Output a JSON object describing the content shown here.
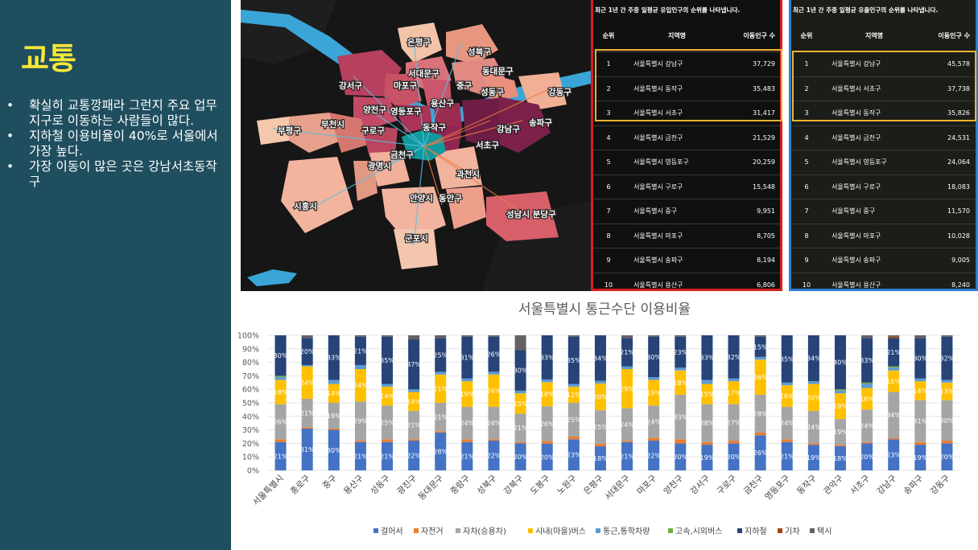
{
  "left_panel": {
    "title": "교통",
    "bullets": [
      "확실히 교통깡패라 그런지 주요 업무지구로 이동하는 사람들이 많다.",
      "지하철 이용비율이 40%로 서울에서 가장 높다.",
      "가장 이동이 많은 곳은 강남서초동작구"
    ],
    "bullet_symbol": "•"
  },
  "map": {
    "labels": [
      "은평구",
      "성북구",
      "서대문구",
      "동대문구",
      "강서구",
      "마포구",
      "중구",
      "성동구",
      "강동구",
      "양천구",
      "영등포구",
      "용산구",
      "부평구",
      "부천시",
      "구로구",
      "동작구",
      "강남구",
      "송파구",
      "서초구",
      "광명시",
      "금천구",
      "과천시",
      "시흥시",
      "안양시",
      "동안구",
      "성남시 분당구",
      "군포시"
    ]
  },
  "table_inflow": {
    "heading": "최근 1년 간 주중 일평균 유입인구의 순위를 나타냅니다.",
    "columns": [
      "순위",
      "지역명",
      "이동인구 수"
    ],
    "rows": [
      [
        "1",
        "서울특별시 강남구",
        "37,729"
      ],
      [
        "2",
        "서울특별시 동작구",
        "35,483"
      ],
      [
        "3",
        "서울특별시 서초구",
        "31,417"
      ],
      [
        "4",
        "서울특별시 금천구",
        "21,529"
      ],
      [
        "5",
        "서울특별시 영등포구",
        "20,259"
      ],
      [
        "6",
        "서울특별시 구로구",
        "15,548"
      ],
      [
        "7",
        "서울특별시 중구",
        "9,951"
      ],
      [
        "8",
        "서울특별시 마포구",
        "8,705"
      ],
      [
        "9",
        "서울특별시 송파구",
        "8,194"
      ],
      [
        "10",
        "서울특별시 용산구",
        "6,806"
      ]
    ]
  },
  "table_outflow": {
    "heading": "최근 1년 간 주중 일평균 유출인구의 순위를 나타냅니다.",
    "columns": [
      "순위",
      "지역명",
      "이동인구 수"
    ],
    "rows": [
      [
        "1",
        "서울특별시 강남구",
        "45,578"
      ],
      [
        "2",
        "서울특별시 서초구",
        "37,738"
      ],
      [
        "3",
        "서울특별시 동작구",
        "35,826"
      ],
      [
        "4",
        "서울특별시 금천구",
        "24,531"
      ],
      [
        "5",
        "서울특별시 영등포구",
        "24,064"
      ],
      [
        "6",
        "서울특별시 구로구",
        "18,083"
      ],
      [
        "7",
        "서울특별시 중구",
        "11,570"
      ],
      [
        "8",
        "서울특별시 마포구",
        "10,028"
      ],
      [
        "9",
        "서울특별시 송파구",
        "9,005"
      ],
      [
        "10",
        "서울특별시 용산구",
        "8,240"
      ]
    ]
  },
  "chart_data": {
    "type": "bar",
    "stacked": true,
    "title": "서울특별시 통근수단 이용비율",
    "ylim": [
      0,
      100
    ],
    "yticks": [
      "0%",
      "10%",
      "20%",
      "30%",
      "40%",
      "50%",
      "60%",
      "70%",
      "80%",
      "90%",
      "100%"
    ],
    "legend_position": "bottom",
    "categories": [
      "서울특별시",
      "종로구",
      "중구",
      "용산구",
      "성동구",
      "광진구",
      "동대문구",
      "중랑구",
      "성북구",
      "강북구",
      "도봉구",
      "노원구",
      "은평구",
      "서대문구",
      "마포구",
      "양천구",
      "강서구",
      "구로구",
      "금천구",
      "영등포구",
      "동작구",
      "관악구",
      "서초구",
      "강남구",
      "송파구",
      "강동구"
    ],
    "series": [
      {
        "name": "걸어서",
        "color": "#4472c4",
        "values": [
          21,
          31,
          30,
          21,
          21,
          22,
          28,
          21,
          22,
          20,
          20,
          23,
          18,
          21,
          22,
          20,
          19,
          20,
          26,
          21,
          19,
          18,
          20,
          23,
          19,
          20
        ]
      },
      {
        "name": "자전거",
        "color": "#ed7d31",
        "values": [
          2,
          1,
          1,
          1,
          2,
          1,
          1,
          2,
          1,
          1,
          2,
          2,
          2,
          1,
          2,
          3,
          2,
          2,
          2,
          2,
          1,
          1,
          1,
          1,
          2,
          2
        ]
      },
      {
        "name": "자차(승용차)",
        "color": "#a5a5a5",
        "values": [
          26,
          21,
          19,
          29,
          25,
          21,
          21,
          24,
          24,
          21,
          26,
          25,
          25,
          24,
          24,
          33,
          28,
          27,
          28,
          24,
          24,
          19,
          24,
          34,
          31,
          30
        ]
      },
      {
        "name": "시내(마을)버스",
        "color": "#ffc000",
        "values": [
          18,
          24,
          14,
          24,
          14,
          14,
          21,
          19,
          24,
          15,
          18,
          12,
          20,
          29,
          19,
          18,
          15,
          17,
          26,
          16,
          20,
          19,
          16,
          16,
          14,
          13
        ]
      },
      {
        "name": "통근,통학차량",
        "color": "#5b9bd5",
        "values": [
          2,
          1,
          3,
          3,
          2,
          2,
          2,
          2,
          2,
          2,
          2,
          2,
          2,
          2,
          2,
          2,
          3,
          2,
          2,
          2,
          2,
          2,
          3,
          2,
          2,
          2
        ]
      },
      {
        "name": "고속,시외버스",
        "color": "#70ad47",
        "values": [
          1,
          0,
          0,
          0,
          0,
          0,
          0,
          0,
          0,
          0,
          0,
          0,
          0,
          0,
          0,
          0,
          0,
          0,
          0,
          0,
          0,
          1,
          1,
          1,
          0,
          0
        ]
      },
      {
        "name": "지하철",
        "color": "#264478",
        "values": [
          30,
          20,
          33,
          21,
          35,
          37,
          25,
          31,
          26,
          30,
          33,
          35,
          34,
          21,
          30,
          23,
          33,
          32,
          15,
          35,
          34,
          40,
          33,
          21,
          30,
          32
        ]
      },
      {
        "name": "기차",
        "color": "#9e480e",
        "values": [
          0,
          0,
          0,
          0,
          0,
          0,
          0,
          0,
          0,
          0,
          0,
          0,
          0,
          0,
          0,
          0,
          0,
          0,
          0,
          0,
          0,
          0,
          0,
          1,
          0,
          0
        ]
      },
      {
        "name": "택시",
        "color": "#636363",
        "values": [
          0,
          2,
          0,
          1,
          1,
          3,
          2,
          1,
          1,
          11,
          0,
          1,
          0,
          2,
          1,
          1,
          0,
          0,
          1,
          0,
          0,
          0,
          2,
          1,
          2,
          1
        ]
      }
    ],
    "labeled_series": [
      "걸어서",
      "자차(승용차)",
      "시내(마을)버스",
      "지하철"
    ]
  },
  "colors": {
    "left_bg": "#1f4e5f",
    "title_yellow": "#f5e73a",
    "inflow_border": "#d61f1f",
    "outflow_border": "#2a7fd4",
    "highlight": "#f2b230"
  }
}
